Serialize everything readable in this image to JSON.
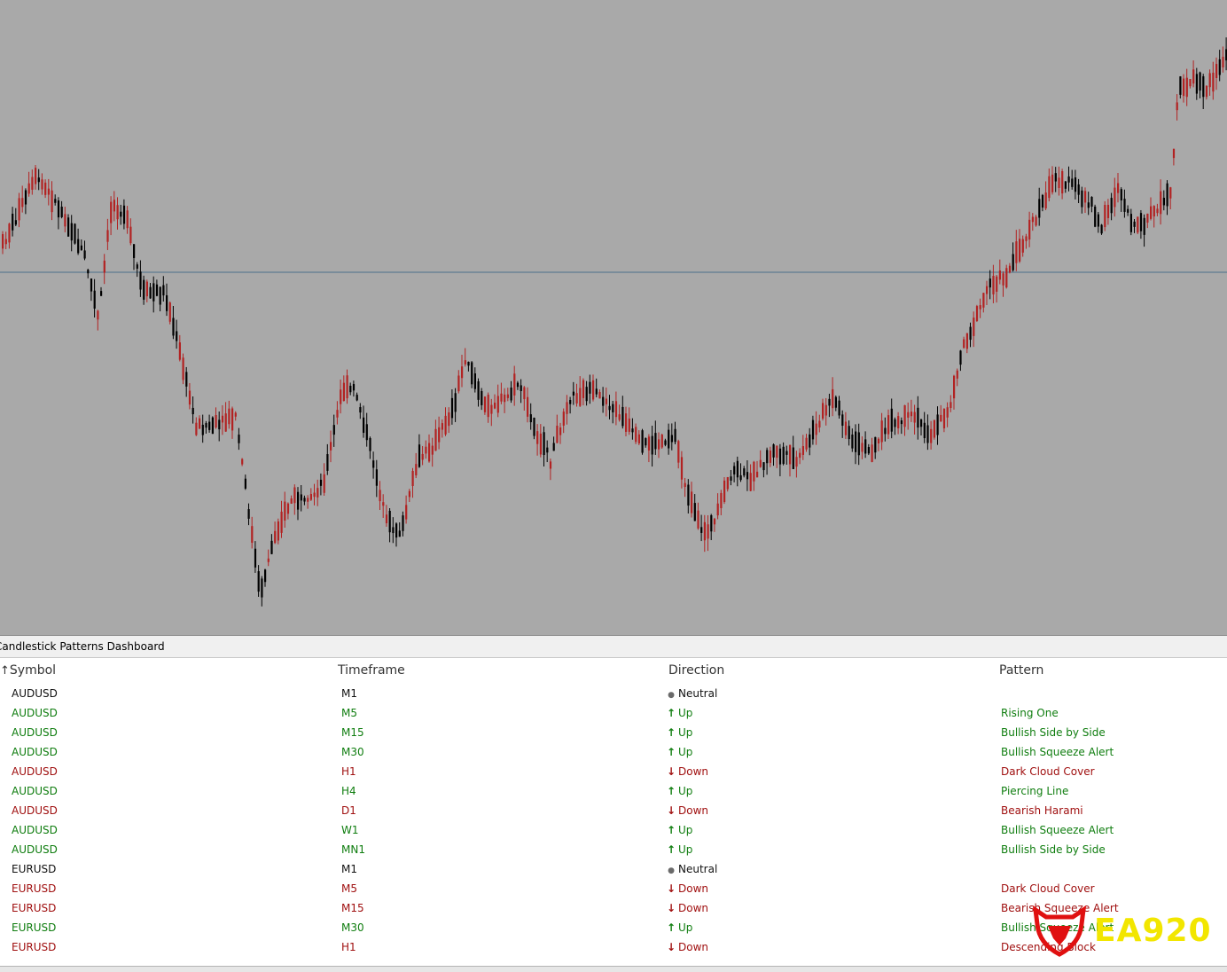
{
  "dashboard": {
    "title": "Candlestick Patterns Dashboard",
    "columns": {
      "symbol": "Symbol",
      "timeframe": "Timeframe",
      "direction": "Direction",
      "pattern": "Pattern"
    },
    "sort_indicator": "↑",
    "rows": [
      {
        "symbol": "AUDUSD",
        "timeframe": "M1",
        "direction": "Neutral",
        "state": "neutral",
        "pattern": ""
      },
      {
        "symbol": "AUDUSD",
        "timeframe": "M5",
        "direction": "Up",
        "state": "up",
        "pattern": "Rising One"
      },
      {
        "symbol": "AUDUSD",
        "timeframe": "M15",
        "direction": "Up",
        "state": "up",
        "pattern": "Bullish Side by Side"
      },
      {
        "symbol": "AUDUSD",
        "timeframe": "M30",
        "direction": "Up",
        "state": "up",
        "pattern": "Bullish Squeeze Alert"
      },
      {
        "symbol": "AUDUSD",
        "timeframe": "H1",
        "direction": "Down",
        "state": "down",
        "pattern": "Dark Cloud Cover"
      },
      {
        "symbol": "AUDUSD",
        "timeframe": "H4",
        "direction": "Up",
        "state": "up",
        "pattern": "Piercing Line"
      },
      {
        "symbol": "AUDUSD",
        "timeframe": "D1",
        "direction": "Down",
        "state": "down",
        "pattern": "Bearish Harami"
      },
      {
        "symbol": "AUDUSD",
        "timeframe": "W1",
        "direction": "Up",
        "state": "up",
        "pattern": "Bullish Squeeze Alert"
      },
      {
        "symbol": "AUDUSD",
        "timeframe": "MN1",
        "direction": "Up",
        "state": "up",
        "pattern": "Bullish Side by Side"
      },
      {
        "symbol": "EURUSD",
        "timeframe": "M1",
        "direction": "Neutral",
        "state": "neutral",
        "pattern": ""
      },
      {
        "symbol": "EURUSD",
        "timeframe": "M5",
        "direction": "Down",
        "state": "down",
        "pattern": "Dark Cloud Cover"
      },
      {
        "symbol": "EURUSD",
        "timeframe": "M15",
        "direction": "Down",
        "state": "down",
        "pattern": "Bearish Squeeze Alert"
      },
      {
        "symbol": "EURUSD",
        "timeframe": "M30",
        "direction": "Up",
        "state": "up",
        "pattern": "Bullish Squeeze Alert"
      },
      {
        "symbol": "EURUSD",
        "timeframe": "H1",
        "direction": "Down",
        "state": "down",
        "pattern": "Descending Block"
      }
    ]
  },
  "chart": {
    "background": "#a9a9a9",
    "bull_color": "#b22222",
    "bear_color": "#000000",
    "price_line_color": "#4a6f8a"
  },
  "icons": {
    "up": "arrow-up-icon",
    "down": "arrow-down-icon",
    "neutral": "dot-icon"
  },
  "colors": {
    "up": "#0f7d0f",
    "down": "#a01010",
    "neutral": "#111111",
    "logo": "#f2e600",
    "logo_icon": "#e01010"
  },
  "logo": {
    "text": "EA920"
  }
}
